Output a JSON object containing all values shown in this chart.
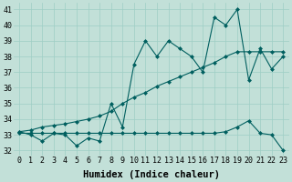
{
  "xlabel": "Humidex (Indice chaleur)",
  "ylabel": "",
  "xlim": [
    -0.5,
    23.5
  ],
  "ylim": [
    31.7,
    41.4
  ],
  "yticks": [
    32,
    33,
    34,
    35,
    36,
    37,
    38,
    39,
    40,
    41
  ],
  "xticks": [
    0,
    1,
    2,
    3,
    4,
    5,
    6,
    7,
    8,
    9,
    10,
    11,
    12,
    13,
    14,
    15,
    16,
    17,
    18,
    19,
    20,
    21,
    22,
    23
  ],
  "bg_color": "#c2e0d8",
  "grid_color": "#9ecec5",
  "line_color": "#005f5f",
  "oscillating_line": [
    33.2,
    33.0,
    32.6,
    33.1,
    33.0,
    32.3,
    32.8,
    32.6,
    35.0,
    33.5,
    37.5,
    39.0,
    38.0,
    39.0,
    38.5,
    38.0,
    37.0,
    40.5,
    40.0,
    41.0,
    36.5,
    38.5,
    37.2,
    38.0
  ],
  "diagonal_line": [
    33.2,
    33.3,
    33.5,
    33.6,
    33.7,
    33.85,
    34.0,
    34.2,
    34.5,
    35.0,
    35.4,
    35.7,
    36.1,
    36.4,
    36.7,
    37.0,
    37.3,
    37.6,
    38.0,
    38.3,
    38.3,
    38.3,
    38.3,
    38.3
  ],
  "flat_line": [
    33.1,
    33.1,
    33.1,
    33.1,
    33.1,
    33.1,
    33.1,
    33.1,
    33.1,
    33.1,
    33.1,
    33.1,
    33.1,
    33.1,
    33.1,
    33.1,
    33.1,
    33.1,
    33.2,
    33.5,
    33.9,
    33.1,
    33.0,
    32.0
  ],
  "font_family": "monospace",
  "tick_fontsize": 6.0,
  "xlabel_fontsize": 7.5,
  "xlabel_fontweight": "bold"
}
